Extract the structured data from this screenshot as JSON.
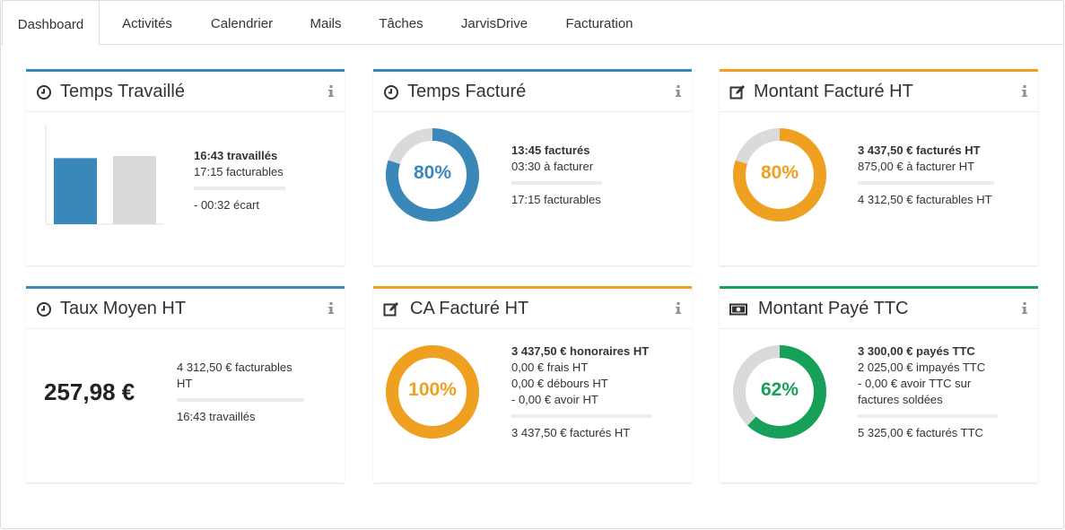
{
  "tabs": [
    {
      "label": "Dashboard",
      "active": true
    },
    {
      "label": "Activités"
    },
    {
      "label": "Calendrier"
    },
    {
      "label": "Mails"
    },
    {
      "label": "Tâches"
    },
    {
      "label": "JarvisDrive"
    },
    {
      "label": "Facturation"
    }
  ],
  "colors": {
    "blue": "#3a87b9",
    "orange": "#f0a020",
    "green": "#16a05a",
    "grey": "#dadada"
  },
  "cards": {
    "temps_travaille": {
      "title": "Temps Travaillé",
      "icon": "clock-icon",
      "line1": "16:43 travaillés",
      "line2": "17:15 facturables",
      "line3": "- 00:32 écart",
      "bar_values": [
        16.72,
        17.25
      ]
    },
    "temps_facture": {
      "title": "Temps Facturé",
      "icon": "clock-icon",
      "percent": "80%",
      "fraction": 0.8,
      "line1": "13:45 facturés",
      "line2": "03:30 à facturer",
      "line3": "17:15 facturables"
    },
    "montant_facture": {
      "title": "Montant Facturé HT",
      "icon": "edit-icon",
      "percent": "80%",
      "fraction": 0.8,
      "line1": "3 437,50 € facturés HT",
      "line2": "875,00 € à facturer HT",
      "line3": "4 312,50 € facturables HT"
    },
    "taux_moyen": {
      "title": "Taux Moyen HT",
      "icon": "clock-icon",
      "big_value": "257,98 €",
      "line1": "4 312,50 € facturables",
      "line1b": "HT",
      "line2": "16:43 travaillés"
    },
    "ca_facture": {
      "title": "CA Facturé HT",
      "icon": "edit-icon",
      "percent": "100%",
      "fraction": 1.0,
      "line1": "3 437,50 € honoraires HT",
      "line2": "0,00 € frais HT",
      "line3": "0,00 € débours HT",
      "line4": "- 0,00 € avoir HT",
      "line5": "3 437,50 € facturés HT"
    },
    "montant_paye": {
      "title": "Montant Payé TTC",
      "icon": "money-icon",
      "percent": "62%",
      "fraction": 0.62,
      "line1": "3 300,00 € payés TTC",
      "line2": "2 025,00 € impayés TTC",
      "line3": "- 0,00 € avoir TTC sur",
      "line3b": "factures soldées",
      "line4": "5 325,00 € facturés TTC"
    }
  }
}
